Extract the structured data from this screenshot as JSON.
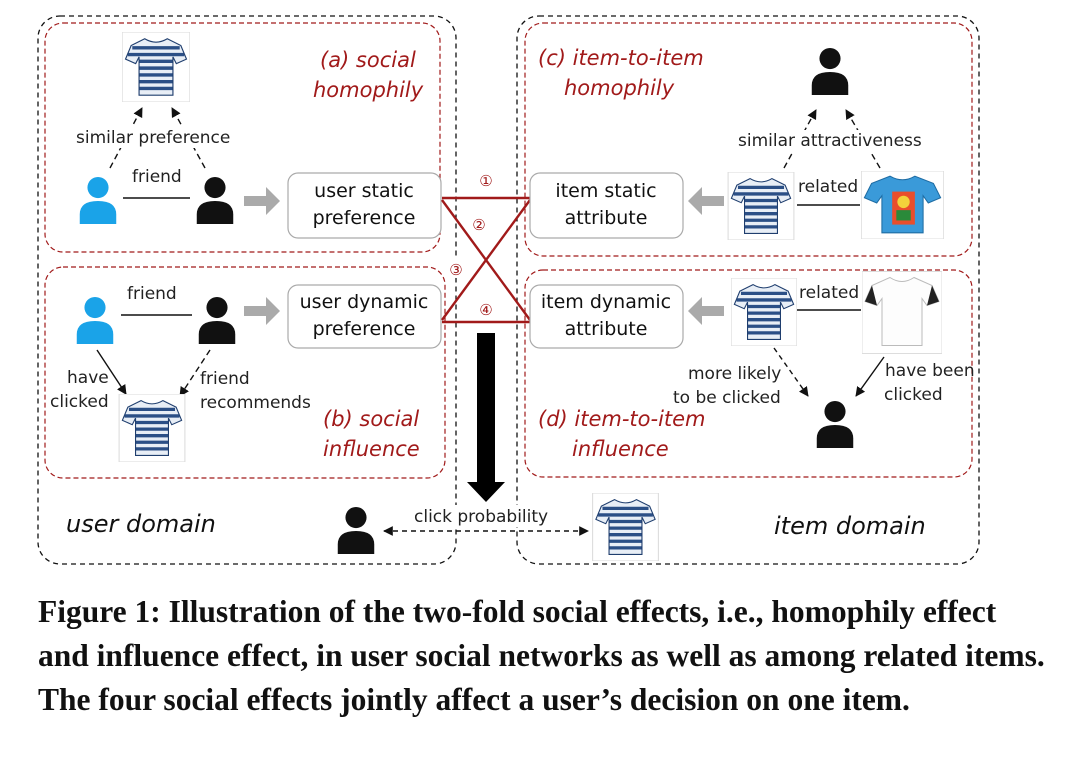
{
  "panels": {
    "a_title_1": "(a) social",
    "a_title_2": "homophily",
    "b_title_1": "(b) social",
    "b_title_2": "influence",
    "c_title_1": "(c) item-to-item",
    "c_title_2": "homophily",
    "d_title_1": "(d) item-to-item",
    "d_title_2": "influence"
  },
  "labels": {
    "similar_preference": "similar preference",
    "friend": "friend",
    "have": "have",
    "clicked": "clicked",
    "friend_recommends_1": "friend",
    "friend_recommends_2": "recommends",
    "similar_attractiveness": "similar attractiveness",
    "related": "related",
    "more_likely_1": "more likely",
    "more_likely_2": "to be clicked",
    "have_been_1": "have been",
    "have_been_2": "clicked",
    "click_probability": "click probability"
  },
  "boxes": {
    "user_static_1": "user static",
    "user_static_2": "preference",
    "user_dynamic_1": "user dynamic",
    "user_dynamic_2": "preference",
    "item_static_1": "item static",
    "item_static_2": "attribute",
    "item_dynamic_1": "item dynamic",
    "item_dynamic_2": "attribute"
  },
  "numbers": {
    "n1": "①",
    "n2": "②",
    "n3": "③",
    "n4": "④"
  },
  "domains": {
    "user": "user domain",
    "item": "item domain"
  },
  "caption": "Figure 1: Illustration of the two-fold social effects, i.e., homophily effect and influence effect, in user social networks as well as among related items. The four social effects jointly affect a user’s decision on one item.",
  "colors": {
    "accent_red": "#a11a1a",
    "user_blue": "#1aa3e8",
    "arrow_gray": "#aaaaaa"
  }
}
